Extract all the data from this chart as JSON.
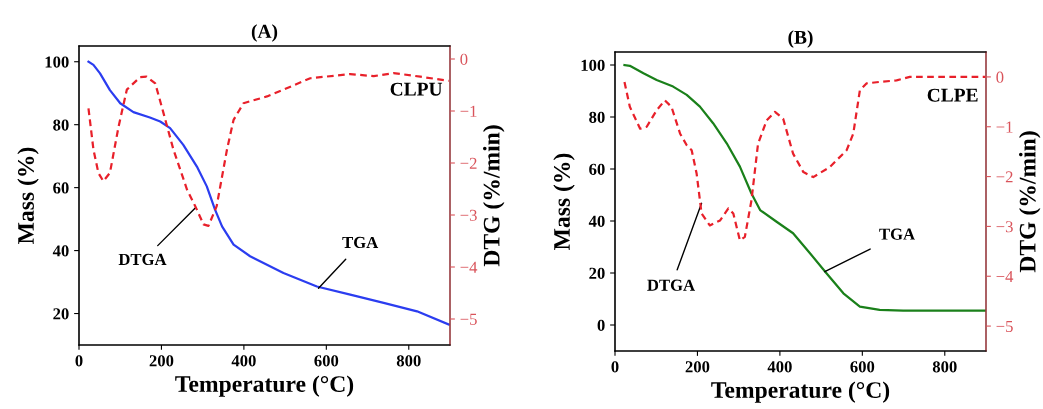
{
  "chart_data": [
    {
      "type": "line",
      "title": "(A)",
      "xlabel": "Temperature (°C)",
      "ylabel": "Mass (%)",
      "y2label": "DTG (%/min)",
      "xlim": [
        0,
        900
      ],
      "xticks": [
        0,
        200,
        400,
        600,
        800
      ],
      "ylim": [
        10,
        105
      ],
      "yticks": [
        20,
        40,
        60,
        80,
        100
      ],
      "y2lim": [
        -5.5,
        0.25
      ],
      "y2ticks": [
        0,
        -1,
        -2,
        -3,
        -4,
        -5
      ],
      "grid": false,
      "legend": false,
      "series": [
        {
          "color": "#2b3df0",
          "line_style": "solid",
          "x": [
            23,
            35,
            51,
            75,
            100,
            132,
            172,
            197,
            221,
            253,
            286,
            310,
            330,
            347,
            375,
            415,
            496,
            577,
            658,
            739,
            820,
            897
          ],
          "values": [
            100,
            99,
            96.3,
            91,
            86.8,
            84,
            82.3,
            81,
            78.9,
            73.6,
            66.7,
            60.4,
            53,
            47.7,
            41.9,
            38.2,
            32.9,
            28.6,
            26,
            23.4,
            20.7,
            16.5
          ]
        },
        {
          "color": "#e8202a",
          "line_style": "dashed",
          "axis": "y2",
          "x": [
            23,
            35,
            47,
            59,
            75,
            96,
            116,
            148,
            164,
            185,
            205,
            229,
            262,
            282,
            302,
            314,
            334,
            359,
            375,
            399,
            456,
            496,
            561,
            658,
            715,
            763,
            828,
            897
          ],
          "values": [
            -0.95,
            -1.74,
            -2.19,
            -2.35,
            -2.19,
            -1.3,
            -0.59,
            -0.35,
            -0.34,
            -0.47,
            -1.04,
            -1.74,
            -2.51,
            -2.83,
            -3.18,
            -3.21,
            -2.83,
            -1.74,
            -1.17,
            -0.85,
            -0.72,
            -0.59,
            -0.37,
            -0.29,
            -0.33,
            -0.27,
            -0.34,
            -0.42
          ]
        }
      ],
      "annotations": [
        "CLPU",
        {
          "text": "DTGA",
          "x": 282,
          "y": 53.5
        },
        {
          "text": "TGA",
          "x": 581,
          "y": 28
        }
      ]
    },
    {
      "type": "line",
      "title": "(B)",
      "xlabel": "Temperature (°C)",
      "ylabel": "Mass (%)",
      "y2label": "DTG (%/min)",
      "xlim": [
        0,
        900
      ],
      "xticks": [
        0,
        200,
        400,
        600,
        800
      ],
      "ylim": [
        -10,
        105
      ],
      "yticks": [
        0,
        20,
        40,
        60,
        80,
        100
      ],
      "y2lim": [
        -5.5,
        0.5
      ],
      "y2ticks": [
        0,
        -1,
        -2,
        -3,
        -4,
        -5
      ],
      "grid": false,
      "legend": false,
      "series": [
        {
          "color": "#1a801a",
          "line_style": "solid",
          "x": [
            23,
            36,
            69,
            101,
            141,
            174,
            206,
            238,
            271,
            303,
            331,
            352,
            392,
            432,
            473,
            513,
            554,
            594,
            642,
            699,
            780,
            899
          ],
          "values": [
            100,
            99.7,
            96.8,
            94.2,
            91.7,
            88.5,
            84,
            77.6,
            69.9,
            60.9,
            50.6,
            44.2,
            39.7,
            35.3,
            27.6,
            19.9,
            12.2,
            7.1,
            5.8,
            5.5,
            5.5,
            5.5
          ]
        },
        {
          "color": "#e8202a",
          "line_style": "dashed",
          "axis": "y2",
          "x": [
            23,
            36,
            61,
            77,
            101,
            121,
            137,
            158,
            174,
            186,
            198,
            210,
            230,
            255,
            275,
            287,
            303,
            315,
            331,
            347,
            368,
            388,
            408,
            432,
            457,
            481,
            521,
            562,
            578,
            594,
            610,
            642,
            683,
            715,
            780,
            899
          ],
          "values": [
            -0.1,
            -0.6,
            -1.04,
            -1.0,
            -0.67,
            -0.47,
            -0.6,
            -1.14,
            -1.37,
            -1.47,
            -1.94,
            -2.74,
            -2.98,
            -2.88,
            -2.64,
            -2.74,
            -3.28,
            -3.21,
            -2.48,
            -1.34,
            -0.87,
            -0.7,
            -0.84,
            -1.54,
            -1.91,
            -2.01,
            -1.81,
            -1.47,
            -1.14,
            -0.27,
            -0.13,
            -0.1,
            -0.07,
            0,
            0,
            0
          ]
        }
      ],
      "annotations": [
        "CLPE",
        {
          "text": "DTGA",
          "x": 210,
          "y": 46.8
        },
        {
          "text": "TGA",
          "x": 509,
          "y": 20.5
        }
      ]
    }
  ]
}
